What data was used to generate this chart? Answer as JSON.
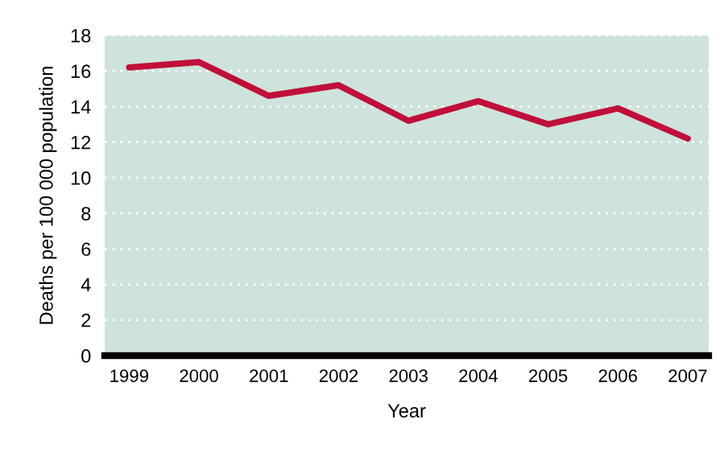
{
  "chart_data": {
    "type": "line",
    "xlabel": "Year",
    "ylabel": "Deaths per 100 000 population",
    "categories": [
      "1999",
      "2000",
      "2001",
      "2002",
      "2003",
      "2004",
      "2005",
      "2006",
      "2007"
    ],
    "series": [
      {
        "color": "#c0103a",
        "values": [
          16.2,
          16.5,
          14.6,
          15.2,
          13.2,
          14.3,
          13.0,
          13.9,
          12.2
        ]
      }
    ],
    "ylim": [
      0,
      18
    ],
    "yticks": [
      0,
      2,
      4,
      6,
      8,
      10,
      12,
      14,
      16,
      18
    ],
    "grid": "y",
    "marker": "none",
    "line_style": "solid",
    "legend": false
  }
}
